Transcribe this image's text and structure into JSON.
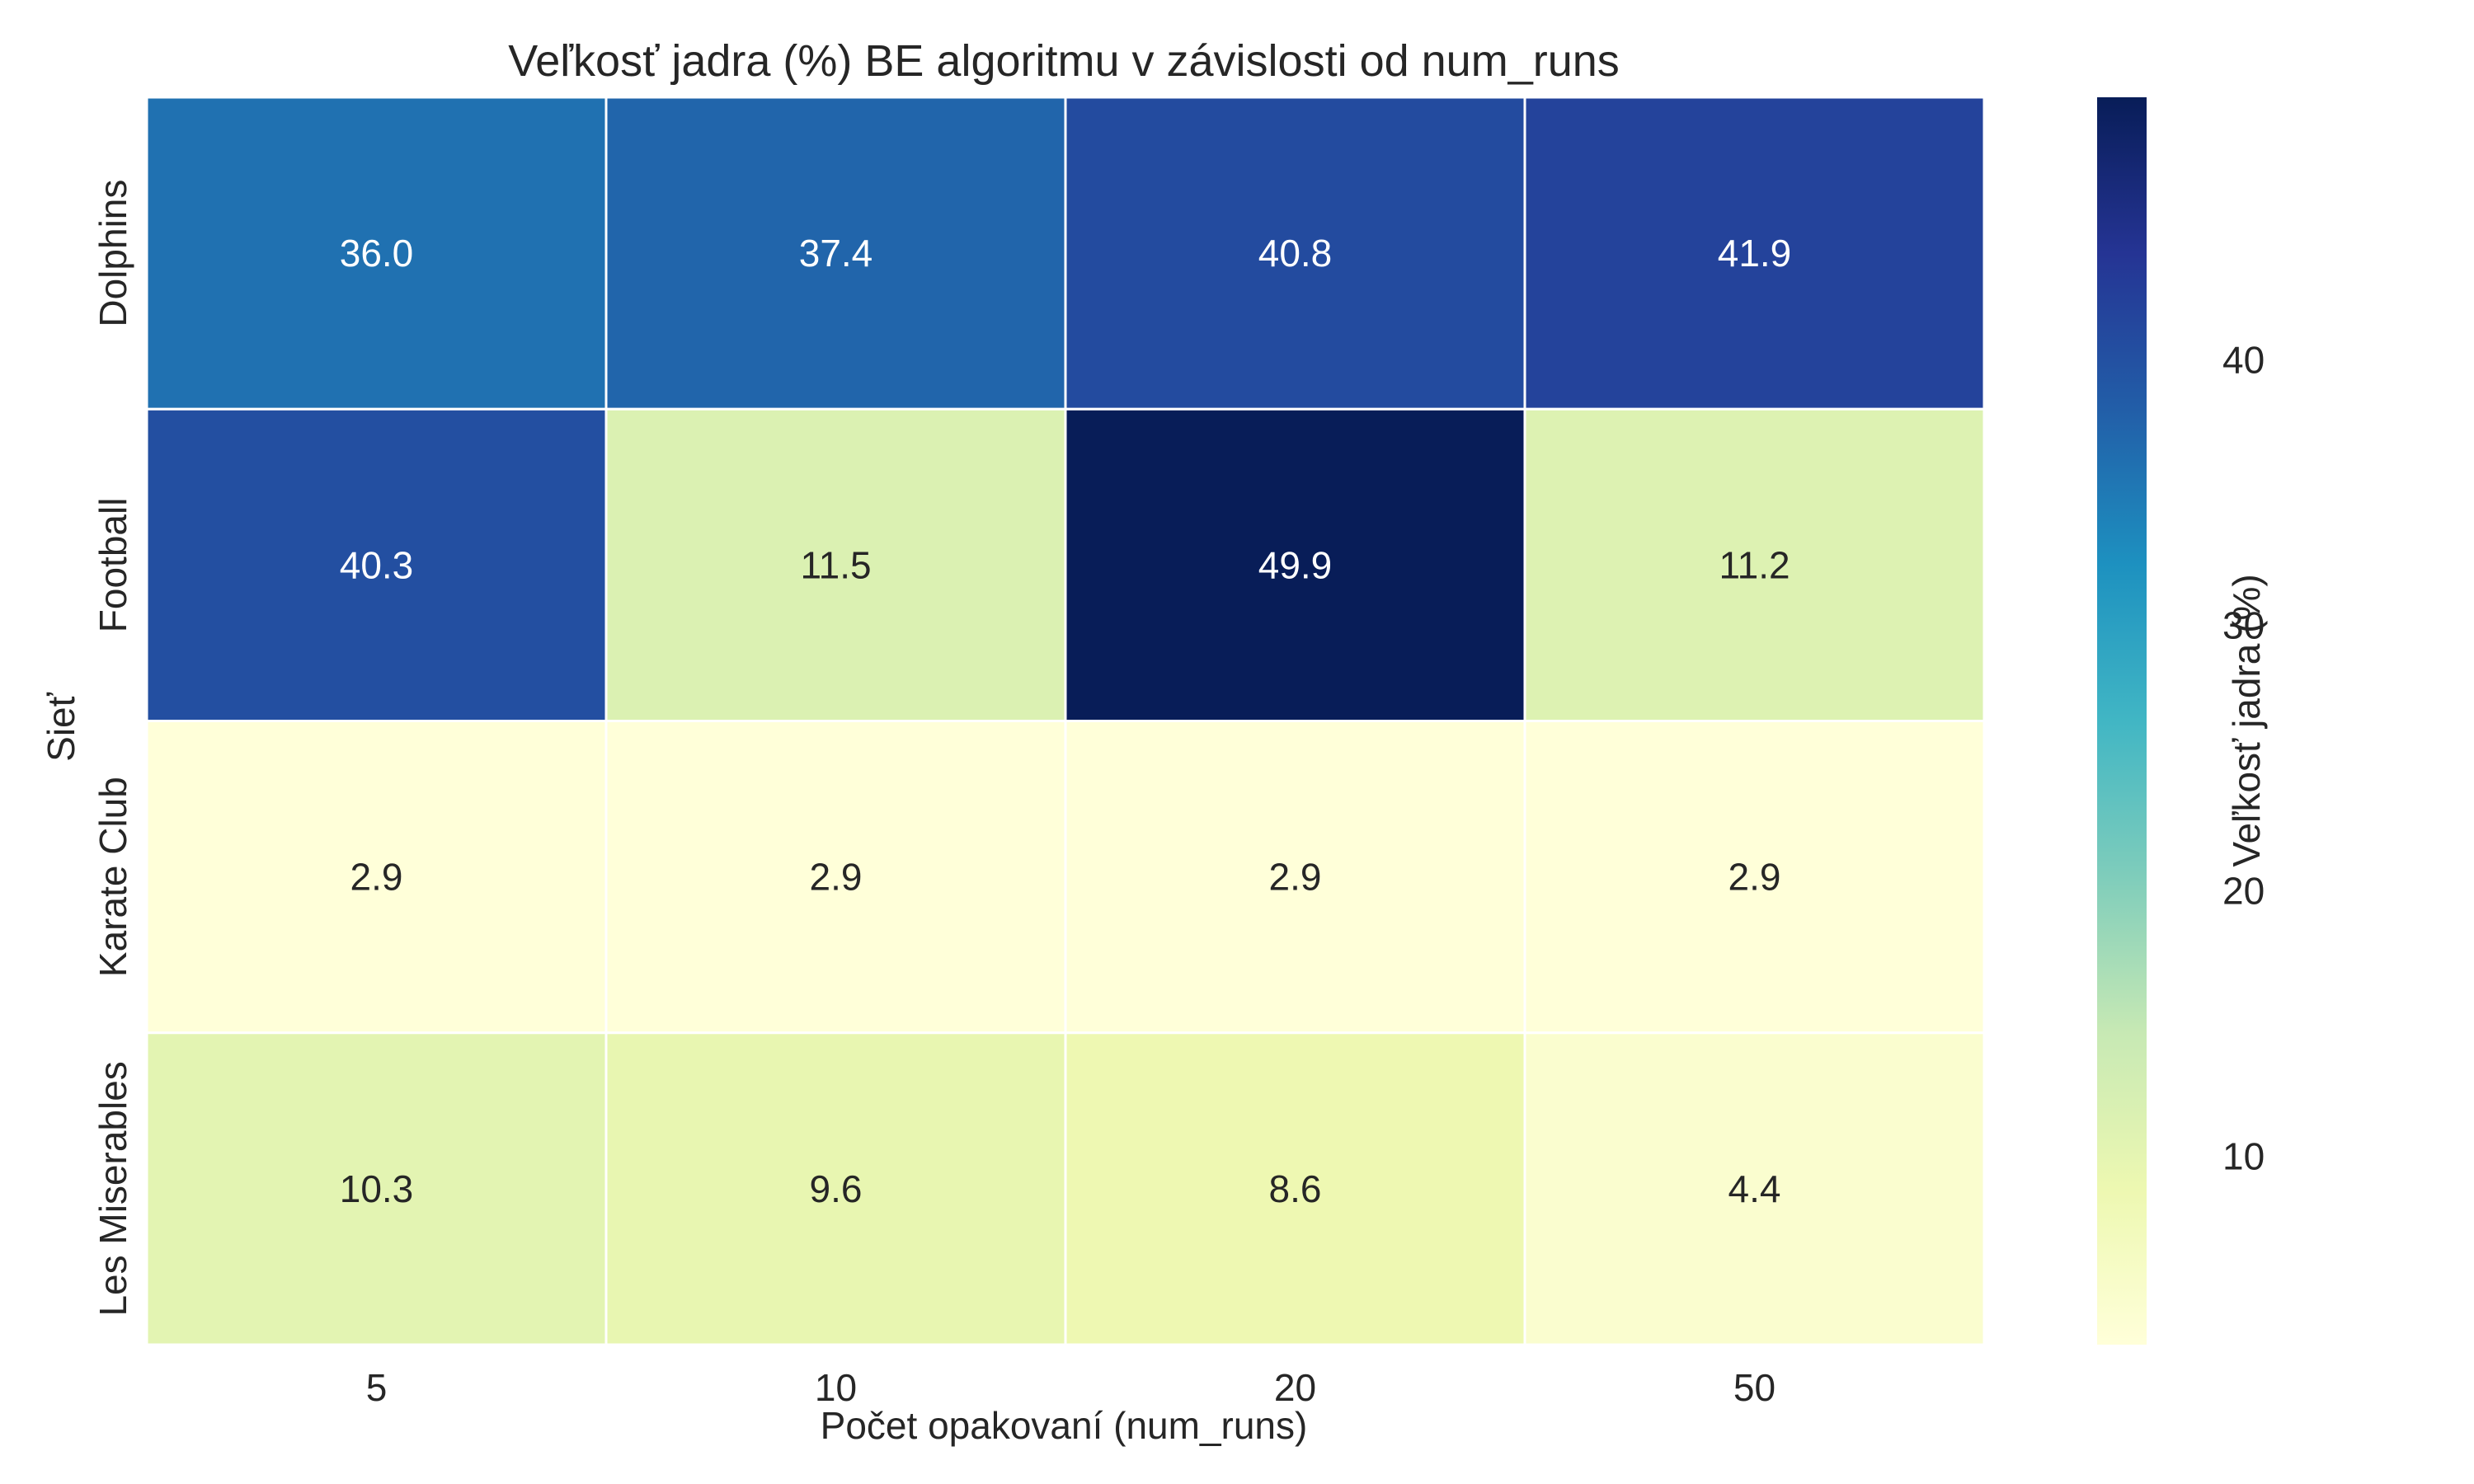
{
  "chart_data": {
    "type": "heatmap",
    "title": "Veľkosť jadra (%) BE algoritmu v závislosti od num_runs",
    "xlabel": "Počet opakovaní (num_runs)",
    "ylabel": "Sieť",
    "x_categories": [
      "5",
      "10",
      "20",
      "50"
    ],
    "y_categories": [
      "Dolphins",
      "Football",
      "Karate Club",
      "Les Miserables"
    ],
    "values": [
      [
        36.0,
        37.4,
        40.8,
        41.9
      ],
      [
        40.3,
        11.5,
        49.9,
        11.2
      ],
      [
        2.9,
        2.9,
        2.9,
        2.9
      ],
      [
        10.3,
        9.6,
        8.6,
        4.4
      ]
    ],
    "value_labels": [
      [
        "36.0",
        "37.4",
        "40.8",
        "41.9"
      ],
      [
        "40.3",
        "11.5",
        "49.9",
        "11.2"
      ],
      [
        "2.9",
        "2.9",
        "2.9",
        "2.9"
      ],
      [
        "10.3",
        "9.6",
        "8.6",
        "4.4"
      ]
    ],
    "colorbar": {
      "label": "Veľkosť jadra (%)",
      "vmin": 2.9,
      "vmax": 49.9,
      "ticks": [
        10,
        20,
        30,
        40
      ],
      "tick_labels": [
        "10",
        "20",
        "30",
        "40"
      ],
      "colormap": "YlGnBu"
    },
    "grid": false,
    "colors": {
      "text": "#262626",
      "cell_text_dark": "#262626",
      "cell_text_light": "#ffffff",
      "separator": "#ffffff"
    }
  }
}
